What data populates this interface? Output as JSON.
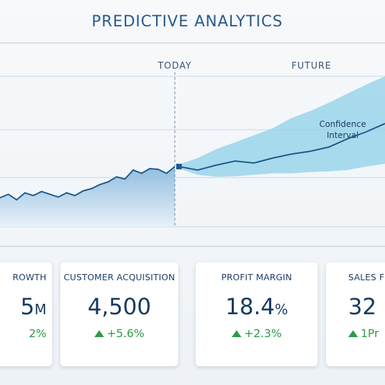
{
  "header": {
    "title": "PREDICTIVE ANALYTICS"
  },
  "chart_data": {
    "type": "line",
    "annotations": {
      "today": "TODAY",
      "future": "FUTURE",
      "band": "Confidence Interval"
    },
    "history": [
      15.8,
      17.7,
      14.7,
      18.5,
      17.0,
      19.2,
      17.7,
      16.2,
      18.5,
      17.0,
      19.6,
      20.8,
      23.0,
      24.5,
      27.2,
      26.0,
      30.9,
      29.1,
      31.7,
      31.3,
      29.1,
      32.8
    ],
    "forecast": [
      32.8,
      30.9,
      33.6,
      35.8,
      34.7,
      37.4,
      39.6,
      41.1,
      43.4,
      47.9,
      51.7,
      56.2
    ],
    "upper": [
      34.0,
      37.4,
      42.3,
      46.0,
      49.8,
      53.6,
      59.2,
      63.0,
      67.5,
      72.5,
      77.4,
      81.9
    ],
    "lower": [
      31.7,
      28.3,
      27.2,
      27.5,
      28.3,
      29.1,
      29.1,
      29.8,
      30.2,
      30.9,
      32.8,
      34.3
    ],
    "color": "#1d5a8c",
    "band_color": "#8fd0e8",
    "grid": true
  },
  "cards": [
    {
      "label": "ROWTH",
      "value": "5",
      "unit": "M",
      "change": "2%"
    },
    {
      "label": "CUSTOMER ACQUISITION",
      "value": "4,500",
      "change": "+5.6%"
    },
    {
      "label": "PROFIT MARGIN",
      "value": "18.4",
      "unit": "%",
      "change": "+2.3%"
    },
    {
      "label": "SALES FO",
      "value": "32",
      "change": "1Pr"
    }
  ]
}
